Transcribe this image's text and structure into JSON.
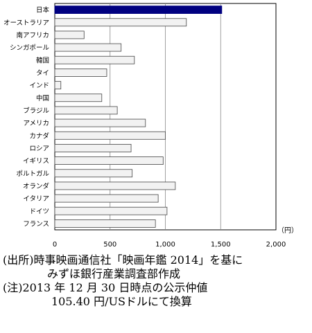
{
  "chart_data": {
    "type": "bar",
    "orientation": "horizontal",
    "categories": [
      "日本",
      "オーストラリア",
      "南アフリカ",
      "シンガポール",
      "韓国",
      "タイ",
      "インド",
      "中国",
      "ブラジル",
      "アメリカ",
      "カナダ",
      "ロシア",
      "イギリス",
      "ポルトガル",
      "オランダ",
      "イタリア",
      "ドイツ",
      "フランス"
    ],
    "values": [
      1510,
      1190,
      265,
      600,
      720,
      470,
      55,
      425,
      565,
      820,
      1000,
      690,
      980,
      700,
      1090,
      935,
      1015,
      910
    ],
    "highlight_index": 0,
    "highlight_color": "#000080",
    "bar_color": "#f2f2f2",
    "xlim": [
      0,
      2000
    ],
    "xticks": [
      "0",
      "500",
      "1,000",
      "1,500",
      "2,000"
    ],
    "xtick_values": [
      0,
      500,
      1000,
      1500,
      2000
    ],
    "unit": "（円）",
    "grid": true
  },
  "notes": {
    "source_label": "(出所)",
    "source_line1": "時事映画通信社「映画年鑑 2014」を基に",
    "source_line2": "みずほ銀行産業調査部作成",
    "note_label": "(注)",
    "note_line1": "2013 年 12 月 30 日時点の公示仲値",
    "note_line2": "105.40 円/USドルにて換算"
  }
}
